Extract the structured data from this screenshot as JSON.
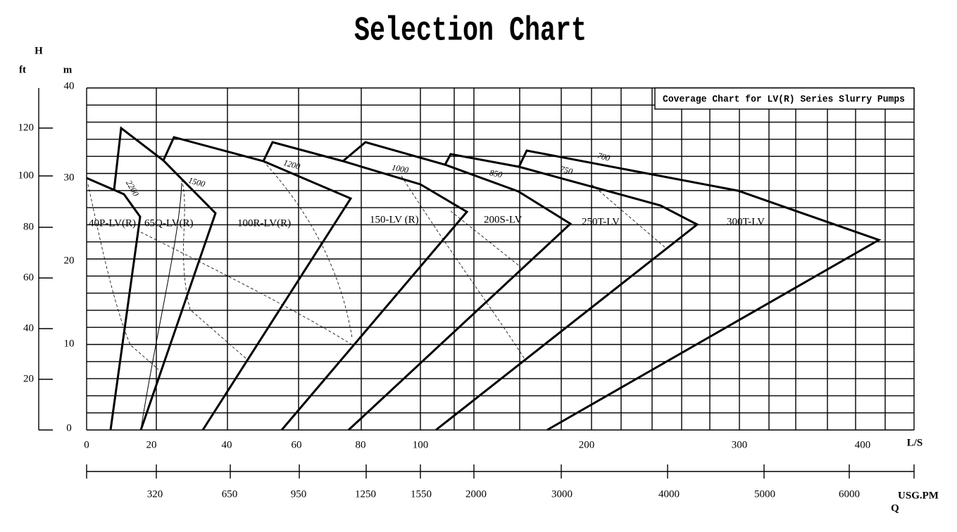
{
  "title": "Selection Chart",
  "box_title": "Coverage Chart for LV(R) Series Slurry Pumps",
  "axes": {
    "h": "H",
    "ft": "ft",
    "m": "m",
    "ls": "L/S",
    "usgpm": "USG.PM",
    "q": "Q",
    "ft_ticks": [
      "120",
      "100",
      "80",
      "60",
      "40",
      "20"
    ],
    "m_ticks": [
      "40",
      "30",
      "20",
      "10",
      "0"
    ],
    "ls_ticks": [
      "0",
      "20",
      "40",
      "60",
      "80",
      "100",
      "200",
      "300",
      "400"
    ],
    "usgpm_ticks": [
      "320",
      "650",
      "950",
      "1250",
      "1550",
      "2000",
      "3000",
      "4000",
      "5000",
      "6000"
    ]
  },
  "pumps": [
    "40P-LV(R)",
    "65Q-LV(R)",
    "100R-LV(R)",
    "150-LV (R)",
    "200S-LV",
    "250T-LV",
    "300T-LV"
  ],
  "speeds": [
    "2200",
    "1500",
    "1200",
    "1000",
    "850",
    "750",
    "700"
  ]
}
